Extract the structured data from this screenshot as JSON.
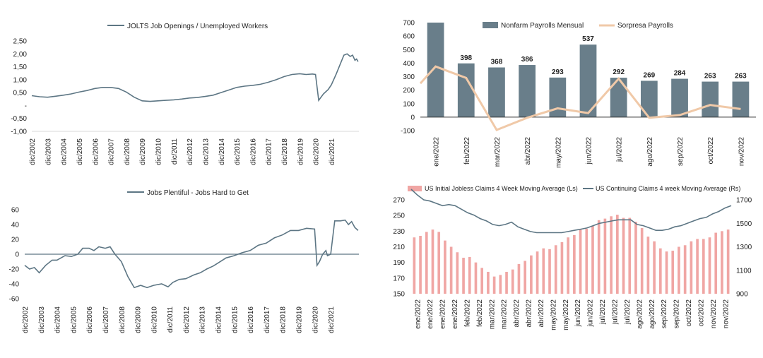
{
  "charts": [
    {
      "id": "jolts",
      "type": "line",
      "title": "",
      "legend": [
        "JOLTS Job Openings / Unemployed Workers"
      ],
      "color": "#5d7684",
      "xlabels": [
        "dic/2002",
        "dic/2003",
        "dic/2004",
        "dic/2005",
        "dic/2006",
        "dic/2007",
        "dic/2008",
        "dic/2009",
        "dic/2010",
        "dic/2011",
        "dic/2012",
        "dic/2013",
        "dic/2014",
        "dic/2015",
        "dic/2016",
        "dic/2017",
        "dic/2018",
        "dic/2019",
        "dic/2020",
        "dic/2021"
      ],
      "ylim": [
        -1.0,
        2.5
      ],
      "yticks": [
        {
          "v": 2.5,
          "label": "2,50"
        },
        {
          "v": 2.0,
          "label": "2,00"
        },
        {
          "v": 1.5,
          "label": "1,50"
        },
        {
          "v": 1.0,
          "label": "1,00"
        },
        {
          "v": 0.5,
          "label": "0,50"
        },
        {
          "v": 0.0,
          "label": "-"
        },
        {
          "v": -0.5,
          "label": "-0,50"
        },
        {
          "v": -1.0,
          "label": "-1,00"
        }
      ],
      "points": [
        [
          2002.0,
          0.38
        ],
        [
          2002.5,
          0.34
        ],
        [
          2003.0,
          0.32
        ],
        [
          2003.5,
          0.36
        ],
        [
          2004.0,
          0.4
        ],
        [
          2004.5,
          0.45
        ],
        [
          2005.0,
          0.52
        ],
        [
          2005.5,
          0.58
        ],
        [
          2006.0,
          0.66
        ],
        [
          2006.5,
          0.7
        ],
        [
          2007.0,
          0.7
        ],
        [
          2007.5,
          0.66
        ],
        [
          2008.0,
          0.52
        ],
        [
          2008.5,
          0.32
        ],
        [
          2009.0,
          0.18
        ],
        [
          2009.5,
          0.16
        ],
        [
          2010.0,
          0.18
        ],
        [
          2010.5,
          0.2
        ],
        [
          2011.0,
          0.22
        ],
        [
          2011.5,
          0.25
        ],
        [
          2012.0,
          0.29
        ],
        [
          2012.5,
          0.31
        ],
        [
          2013.0,
          0.35
        ],
        [
          2013.5,
          0.4
        ],
        [
          2014.0,
          0.5
        ],
        [
          2014.5,
          0.6
        ],
        [
          2015.0,
          0.7
        ],
        [
          2015.5,
          0.75
        ],
        [
          2016.0,
          0.78
        ],
        [
          2016.5,
          0.82
        ],
        [
          2017.0,
          0.9
        ],
        [
          2017.5,
          1.0
        ],
        [
          2018.0,
          1.12
        ],
        [
          2018.5,
          1.2
        ],
        [
          2019.0,
          1.23
        ],
        [
          2019.4,
          1.2
        ],
        [
          2019.8,
          1.22
        ],
        [
          2020.0,
          1.2
        ],
        [
          2020.2,
          0.2
        ],
        [
          2020.5,
          0.45
        ],
        [
          2020.8,
          0.62
        ],
        [
          2021.0,
          0.8
        ],
        [
          2021.3,
          1.2
        ],
        [
          2021.6,
          1.65
        ],
        [
          2021.8,
          1.95
        ],
        [
          2022.0,
          2.0
        ],
        [
          2022.2,
          1.9
        ],
        [
          2022.35,
          1.95
        ],
        [
          2022.5,
          1.75
        ],
        [
          2022.6,
          1.8
        ],
        [
          2022.7,
          1.7
        ]
      ]
    },
    {
      "id": "nfp",
      "type": "bar",
      "title": "",
      "legend": [
        "Nonfarm Payrolls Mensual",
        "Sorpresa Payrolls"
      ],
      "bar_color": "#697e8a",
      "line_color": "#f0c9a8",
      "categories": [
        "ene/2022",
        "feb/2022",
        "mar/2022",
        "abr/2022",
        "may/2022",
        "jun/2022",
        "jul/2022",
        "ago/2022",
        "sep/2022",
        "oct/2022",
        "nov/2022"
      ],
      "values": [
        700,
        398,
        368,
        386,
        293,
        537,
        292,
        269,
        284,
        263,
        263
      ],
      "labels": [
        "",
        "398",
        "368",
        "386",
        "293",
        "537",
        "292",
        "269",
        "284",
        "263",
        "263"
      ],
      "surprise": [
        375,
        290,
        -95,
        -5,
        65,
        30,
        285,
        -5,
        15,
        90,
        60
      ],
      "ylim": [
        -100,
        700
      ],
      "yticks": [
        700,
        600,
        500,
        400,
        300,
        200,
        100,
        0,
        -100
      ]
    },
    {
      "id": "plentiful",
      "type": "line",
      "title": "",
      "legend": [
        "Jobs Plentiful - Jobs Hard to Get"
      ],
      "color": "#5d7684",
      "xlabels": [
        "dic/2002",
        "dic/2003",
        "dic/2004",
        "dic/2005",
        "dic/2006",
        "dic/2007",
        "dic/2008",
        "dic/2009",
        "dic/2010",
        "dic/2011",
        "dic/2012",
        "dic/2013",
        "dic/2014",
        "dic/2015",
        "dic/2016",
        "dic/2017",
        "dic/2018",
        "dic/2019",
        "dic/2020",
        "dic/2021"
      ],
      "ylim": [
        -60,
        60
      ],
      "yticks": [
        60,
        40,
        20,
        0,
        -20,
        -40,
        -60
      ],
      "points": [
        [
          2002.0,
          -15
        ],
        [
          2002.3,
          -20
        ],
        [
          2002.6,
          -18
        ],
        [
          2002.9,
          -25
        ],
        [
          2003.3,
          -15
        ],
        [
          2003.7,
          -8
        ],
        [
          2004.0,
          -8
        ],
        [
          2004.5,
          -2
        ],
        [
          2004.9,
          -3
        ],
        [
          2005.3,
          0
        ],
        [
          2005.6,
          8
        ],
        [
          2006.0,
          8
        ],
        [
          2006.3,
          5
        ],
        [
          2006.6,
          10
        ],
        [
          2007.0,
          8
        ],
        [
          2007.3,
          10
        ],
        [
          2007.6,
          0
        ],
        [
          2008.0,
          -10
        ],
        [
          2008.4,
          -30
        ],
        [
          2008.8,
          -45
        ],
        [
          2009.2,
          -42
        ],
        [
          2009.6,
          -45
        ],
        [
          2010.0,
          -42
        ],
        [
          2010.5,
          -40
        ],
        [
          2010.9,
          -44
        ],
        [
          2011.2,
          -38
        ],
        [
          2011.6,
          -34
        ],
        [
          2012.0,
          -33
        ],
        [
          2012.5,
          -28
        ],
        [
          2012.9,
          -25
        ],
        [
          2013.3,
          -20
        ],
        [
          2013.7,
          -16
        ],
        [
          2014.0,
          -12
        ],
        [
          2014.5,
          -5
        ],
        [
          2015.0,
          -2
        ],
        [
          2015.5,
          2
        ],
        [
          2016.0,
          5
        ],
        [
          2016.5,
          12
        ],
        [
          2017.0,
          15
        ],
        [
          2017.5,
          22
        ],
        [
          2018.0,
          26
        ],
        [
          2018.5,
          32
        ],
        [
          2019.0,
          32
        ],
        [
          2019.5,
          35
        ],
        [
          2020.0,
          34
        ],
        [
          2020.15,
          -15
        ],
        [
          2020.3,
          -10
        ],
        [
          2020.5,
          0
        ],
        [
          2020.7,
          5
        ],
        [
          2020.8,
          -2
        ],
        [
          2021.0,
          0
        ],
        [
          2021.25,
          45
        ],
        [
          2021.6,
          45
        ],
        [
          2021.9,
          46
        ],
        [
          2022.1,
          40
        ],
        [
          2022.3,
          44
        ],
        [
          2022.5,
          36
        ],
        [
          2022.7,
          32
        ]
      ]
    },
    {
      "id": "claims",
      "type": "bar-line",
      "title": "",
      "legend": [
        "US Initial Jobless Claims 4 Week Moving Average (Ls)",
        "US Continuing Claims 4 week Moving Average (Rs)"
      ],
      "bar_color": "#f0a6a4",
      "line_color": "#5d7684",
      "categories": [
        "ene/2022",
        "ene/2022",
        "ene/2022",
        "ene/2022",
        "feb/2022",
        "feb/2022",
        "mar/2022",
        "mar/2022",
        "abr/2022",
        "abr/2022",
        "abr/2022",
        "may/2022",
        "may/2022",
        "jun/2022",
        "jun/2022",
        "jul/2022",
        "jul/2022",
        "jul/2022",
        "ago/2022",
        "ago/2022",
        "sep/2022",
        "sep/2022",
        "oct/2022",
        "oct/2022",
        "nov/2022",
        "nov/2022"
      ],
      "bars": [
        222,
        224,
        229,
        232,
        229,
        218,
        210,
        203,
        196,
        197,
        190,
        183,
        178,
        172,
        174,
        178,
        181,
        188,
        192,
        199,
        204,
        208,
        207,
        212,
        216,
        222,
        225,
        232,
        233,
        237,
        244,
        246,
        249,
        251,
        247,
        247,
        242,
        234,
        223,
        217,
        208,
        204,
        205,
        210,
        212,
        217,
        220,
        220,
        222,
        228,
        230,
        232
      ],
      "line": [
        1790,
        1740,
        1700,
        1690,
        1670,
        1650,
        1660,
        1650,
        1620,
        1590,
        1570,
        1540,
        1520,
        1490,
        1480,
        1490,
        1510,
        1470,
        1450,
        1430,
        1420,
        1420,
        1420,
        1420,
        1420,
        1430,
        1440,
        1450,
        1460,
        1480,
        1500,
        1510,
        1520,
        1530,
        1530,
        1530,
        1490,
        1480,
        1460,
        1440,
        1440,
        1450,
        1470,
        1480,
        1500,
        1520,
        1540,
        1550,
        1580,
        1600,
        1630,
        1650
      ],
      "ylim_left": [
        150,
        270
      ],
      "ylim_right": [
        900,
        1700
      ],
      "yticks_left": [
        270,
        250,
        230,
        210,
        190,
        170,
        150
      ],
      "yticks_right": [
        1700,
        1500,
        1300,
        1100,
        900
      ]
    }
  ]
}
